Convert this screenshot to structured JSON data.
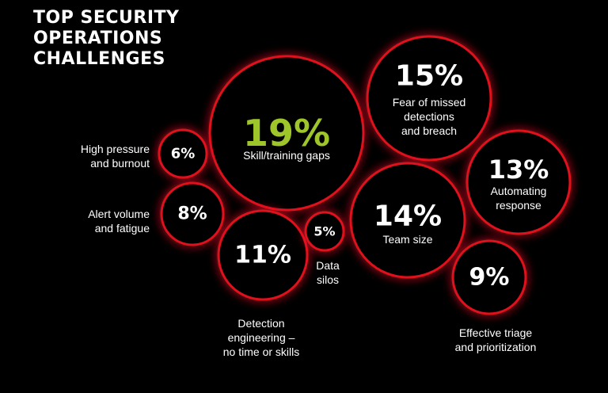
{
  "title_lines": [
    "TOP SECURITY",
    "OPERATIONS",
    "CHALLENGES"
  ],
  "colors": {
    "background": "#000000",
    "ring": "#e0101c",
    "glow": "#ff1a26",
    "text": "#ffffff",
    "highlight": "#9ec62a"
  },
  "chart_data": {
    "type": "bubble",
    "title": "TOP SECURITY OPERATIONS CHALLENGES",
    "unit": "%",
    "items": [
      {
        "key": "skill",
        "value": 19,
        "label": "19%",
        "category": "Skill/training gaps",
        "highlight": true
      },
      {
        "key": "fear",
        "value": 15,
        "label": "15%",
        "category": "Fear of missed detections and breach"
      },
      {
        "key": "team",
        "value": 14,
        "label": "14%",
        "category": "Team size"
      },
      {
        "key": "automating",
        "value": 13,
        "label": "13%",
        "category": "Automating response"
      },
      {
        "key": "detection",
        "value": 11,
        "label": "11%",
        "category": "Detection engineering – no time or skills"
      },
      {
        "key": "triage",
        "value": 9,
        "label": "9%",
        "category": "Effective triage and prioritization"
      },
      {
        "key": "alert",
        "value": 8,
        "label": "8%",
        "category": "Alert volume and fatigue"
      },
      {
        "key": "pressure",
        "value": 6,
        "label": "6%",
        "category": "High pressure and burnout"
      },
      {
        "key": "silos",
        "value": 5,
        "label": "5%",
        "category": "Data silos"
      }
    ]
  }
}
